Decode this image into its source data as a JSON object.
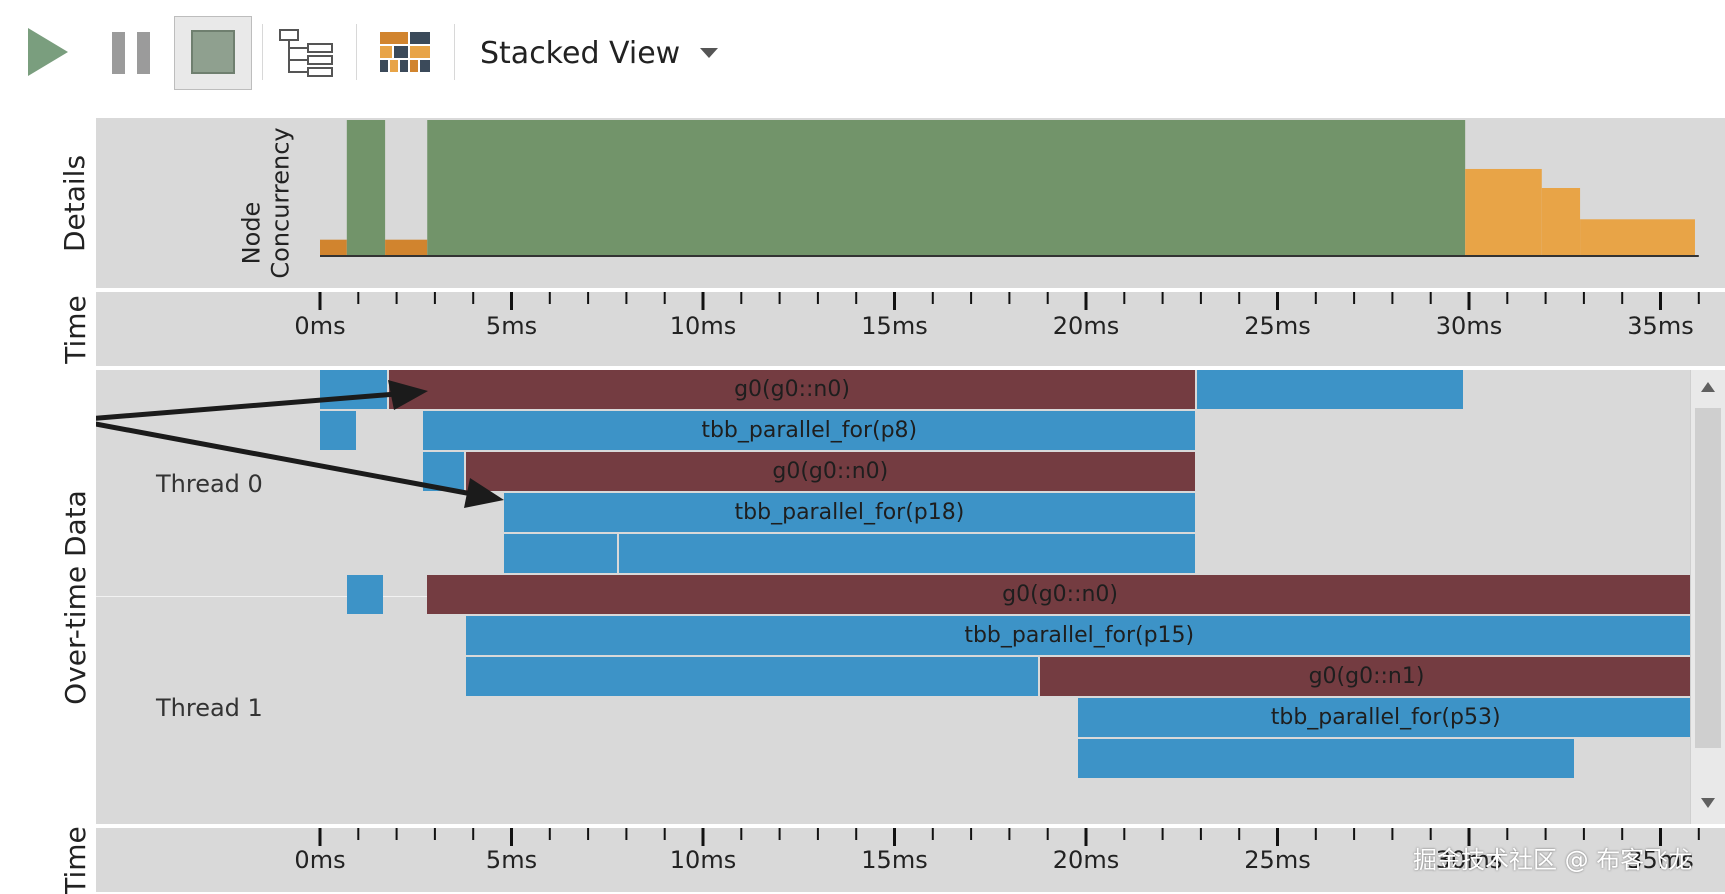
{
  "toolbar": {
    "view_mode_label": "Stacked View",
    "buttons": [
      "play-icon",
      "pause-icon",
      "stop-icon",
      "tree-view-icon",
      "color-palette-icon"
    ]
  },
  "panels": {
    "details_label": "Details",
    "time_label": "Time",
    "overtime_label": "Over-time Data",
    "node_axis_label": "Node",
    "concurrency_axis_label": "Concurrency"
  },
  "time_axis": {
    "ticks": [
      "0ms",
      "5ms",
      "10ms",
      "15ms",
      "20ms",
      "25ms",
      "30ms",
      "35ms"
    ],
    "tick_values_ms": [
      0,
      5,
      10,
      15,
      20,
      25,
      30,
      35
    ]
  },
  "threads": [
    {
      "label": "Thread 0",
      "rows": [
        [
          {
            "start_ms": 0,
            "end_ms": 1.8,
            "kind": "blue",
            "label": ""
          },
          {
            "start_ms": 1.8,
            "end_ms": 22.9,
            "kind": "red",
            "label": "g0(g0::n0)"
          },
          {
            "start_ms": 22.9,
            "end_ms": 29.9,
            "kind": "blue",
            "label": ""
          }
        ],
        [
          {
            "start_ms": 0,
            "end_ms": 1.0,
            "kind": "blue",
            "label": ""
          },
          {
            "start_ms": 2.7,
            "end_ms": 22.9,
            "kind": "blue",
            "label": "tbb_parallel_for(p8)"
          }
        ],
        [
          {
            "start_ms": 2.7,
            "end_ms": 3.8,
            "kind": "blue",
            "label": ""
          },
          {
            "start_ms": 3.8,
            "end_ms": 22.9,
            "kind": "red",
            "label": "g0(g0::n0)"
          }
        ],
        [
          {
            "start_ms": 4.8,
            "end_ms": 22.9,
            "kind": "blue",
            "label": "tbb_parallel_for(p18)"
          }
        ],
        [
          {
            "start_ms": 4.8,
            "end_ms": 7.8,
            "kind": "blue",
            "label": ""
          },
          {
            "start_ms": 7.8,
            "end_ms": 22.9,
            "kind": "blue",
            "label": ""
          }
        ]
      ]
    },
    {
      "label": "Thread 1",
      "rows": [
        [
          {
            "start_ms": 0.7,
            "end_ms": 1.7,
            "kind": "blue",
            "label": ""
          },
          {
            "start_ms": 2.8,
            "end_ms": 35.9,
            "kind": "red",
            "label": "g0(g0::n0)"
          }
        ],
        [
          {
            "start_ms": 3.8,
            "end_ms": 35.9,
            "kind": "blue",
            "label": "tbb_parallel_for(p15)"
          }
        ],
        [
          {
            "start_ms": 3.8,
            "end_ms": 18.8,
            "kind": "blue",
            "label": ""
          },
          {
            "start_ms": 18.8,
            "end_ms": 35.9,
            "kind": "red",
            "label": "g0(g0::n1)"
          }
        ],
        [
          {
            "start_ms": 19.8,
            "end_ms": 35.9,
            "kind": "blue",
            "label": "tbb_parallel_for(p53)"
          }
        ],
        [
          {
            "start_ms": 19.8,
            "end_ms": 32.8,
            "kind": "blue",
            "label": ""
          }
        ]
      ]
    }
  ],
  "concurrency_chart": {
    "segments": [
      {
        "start_ms": 0,
        "end_ms": 0.7,
        "level": 0.12,
        "color": "#d1842e"
      },
      {
        "start_ms": 0.7,
        "end_ms": 1.7,
        "level": 1.0,
        "color": "#72946a"
      },
      {
        "start_ms": 1.7,
        "end_ms": 2.8,
        "level": 0.12,
        "color": "#d1842e"
      },
      {
        "start_ms": 2.8,
        "end_ms": 29.9,
        "level": 1.0,
        "color": "#72946a"
      },
      {
        "start_ms": 29.9,
        "end_ms": 31.9,
        "level": 0.64,
        "color": "#e8a447"
      },
      {
        "start_ms": 31.9,
        "end_ms": 32.9,
        "level": 0.5,
        "color": "#e8a447"
      },
      {
        "start_ms": 32.9,
        "end_ms": 35.9,
        "level": 0.27,
        "color": "#e8a447"
      }
    ]
  },
  "colors": {
    "panel_bg": "#d9d9d9",
    "bar_blue": "#3d93c7",
    "bar_red": "#743c41",
    "concurrency_green": "#72946a",
    "concurrency_orange": "#e8a447"
  },
  "watermark": "掘金技术社区 @ 布客飞龙"
}
